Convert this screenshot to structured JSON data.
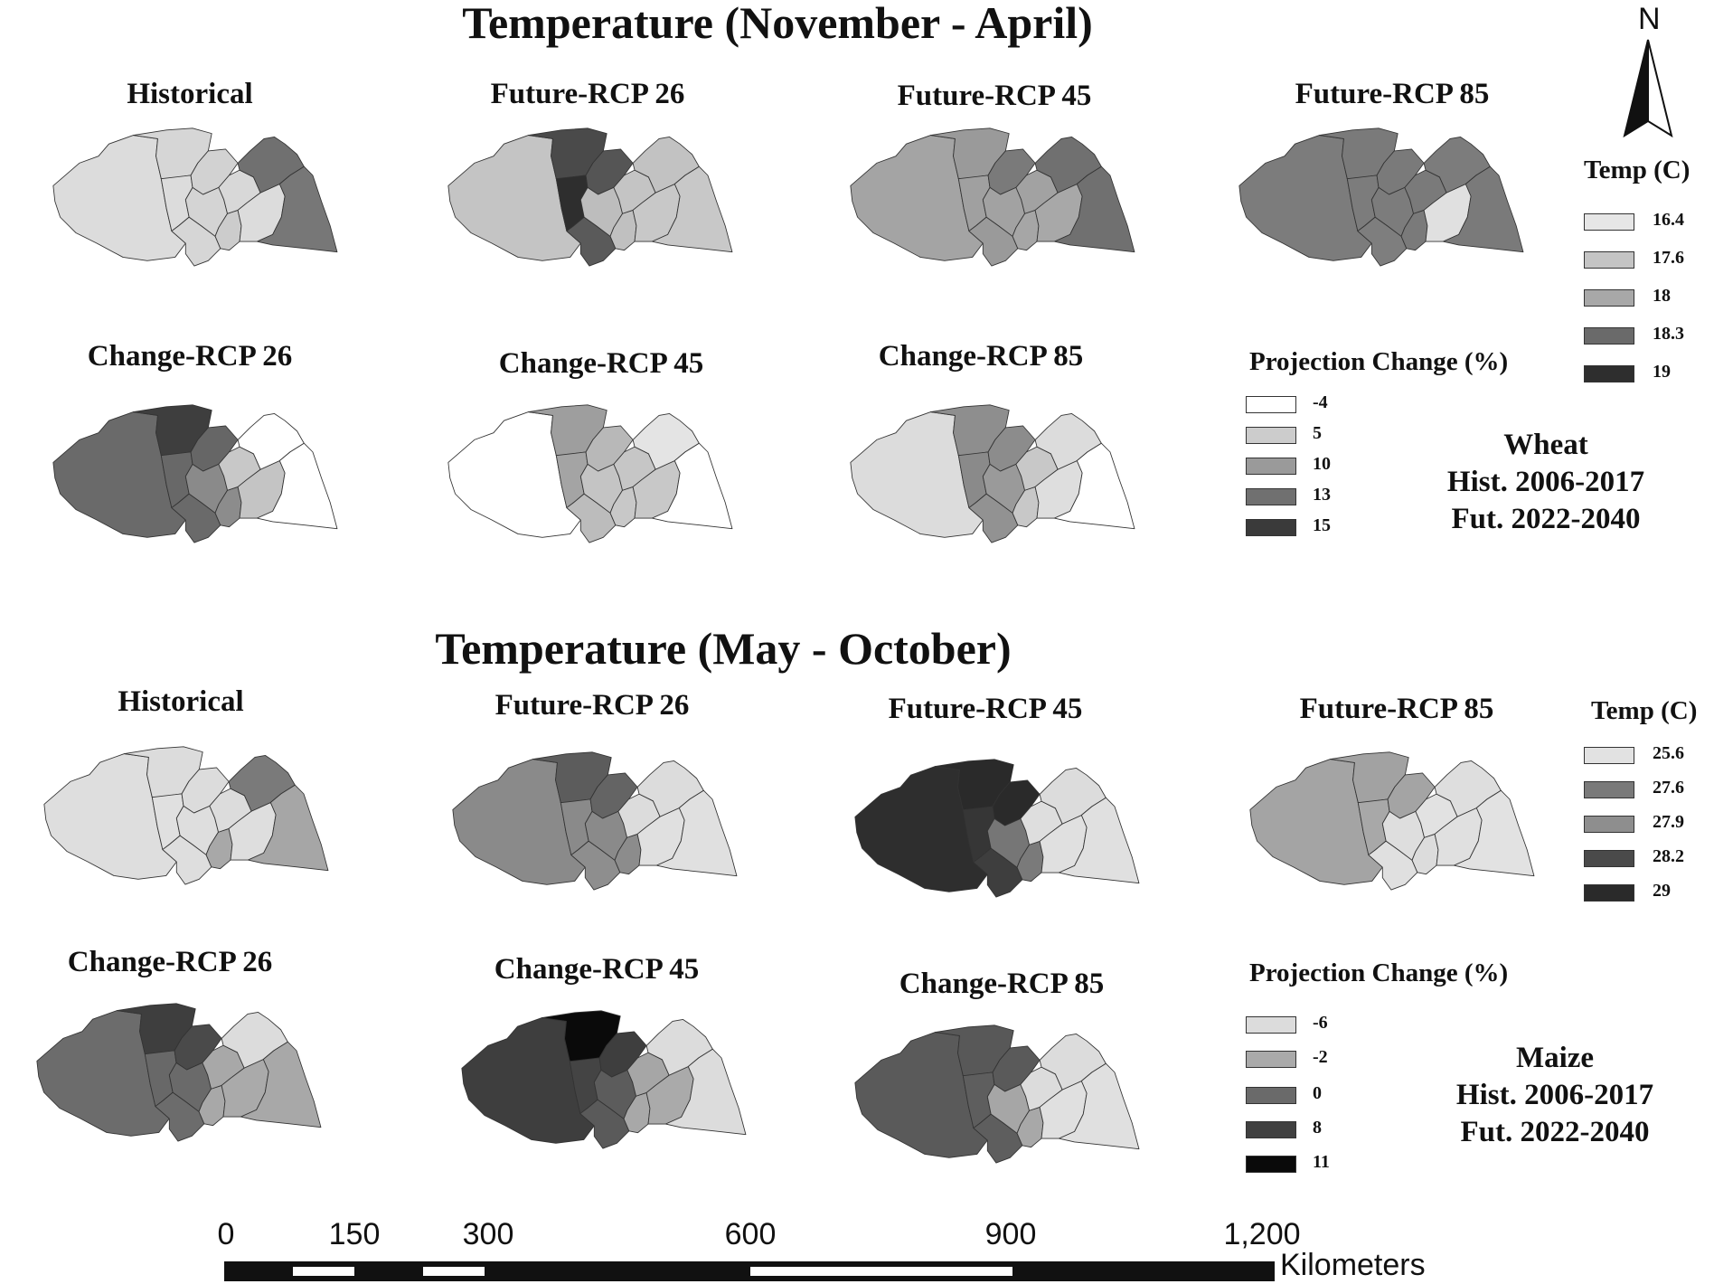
{
  "sections": [
    {
      "title": "Temperature (November - April)",
      "maps_top": [
        {
          "label": "Historical",
          "shades": [
            "#dcdcdc",
            "#d6d6d6",
            "#dcdcdc",
            "#d2d2d2",
            "#d6d6d6",
            "#d4d4d4",
            "#cccccc",
            "#d8d8d8",
            "#dcdcdc",
            "#707070",
            "#777777"
          ]
        },
        {
          "label": "Future-RCP 26",
          "shades": [
            "#c4c4c4",
            "#4a4a4a",
            "#2e2e2e",
            "#555555",
            "#5a5a5a",
            "#bdbdbd",
            "#c0c0c0",
            "#c4c4c4",
            "#c8c8c8",
            "#c2c2c2",
            "#c8c8c8"
          ]
        },
        {
          "label": "Future-RCP 45",
          "shades": [
            "#a4a4a4",
            "#9a9a9a",
            "#a0a0a0",
            "#7a7a7a",
            "#9a9a9a",
            "#a2a2a2",
            "#a6a6a6",
            "#a2a2a2",
            "#a8a8a8",
            "#707070",
            "#707070"
          ]
        },
        {
          "label": "Future-RCP 85",
          "shades": [
            "#7c7c7c",
            "#7a7a7a",
            "#7c7c7c",
            "#7a7a7a",
            "#7e7e7e",
            "#7c7c7c",
            "#7a7a7a",
            "#7a7a7a",
            "#e0e0e0",
            "#7c7c7c",
            "#7a7a7a"
          ]
        }
      ],
      "maps_bottom": [
        {
          "label": "Change-RCP 26",
          "shades": [
            "#6a6a6a",
            "#3e3e3e",
            "#686868",
            "#666666",
            "#6a6a6a",
            "#8a8a8a",
            "#8c8c8c",
            "#c8c8c8",
            "#c4c4c4",
            "#ffffff",
            "#ffffff"
          ]
        },
        {
          "label": "Change-RCP 45",
          "shades": [
            "#ffffff",
            "#9e9e9e",
            "#a4a4a4",
            "#b8b8b8",
            "#bcbcbc",
            "#c4c4c4",
            "#c8c8c8",
            "#c6c6c6",
            "#c8c8c8",
            "#e4e4e4",
            "#ffffff"
          ]
        },
        {
          "label": "Change-RCP 85",
          "shades": [
            "#dcdcdc",
            "#8e8e8e",
            "#8a8a8a",
            "#8c8c8c",
            "#929292",
            "#9a9a9a",
            "#c8c8c8",
            "#c8c8c8",
            "#dedede",
            "#dcdcdc",
            "#ffffff"
          ]
        }
      ],
      "temp_legend": {
        "title": "Temp (C)",
        "items": [
          {
            "label": "16.4",
            "color": "#e6e6e6"
          },
          {
            "label": "17.6",
            "color": "#c4c4c4"
          },
          {
            "label": "18",
            "color": "#a8a8a8"
          },
          {
            "label": "18.3",
            "color": "#6a6a6a"
          },
          {
            "label": "19",
            "color": "#2e2e2e"
          }
        ]
      },
      "change_legend": {
        "title": "Projection Change (%)",
        "items": [
          {
            "label": "-4",
            "color": "#ffffff"
          },
          {
            "label": "5",
            "color": "#cccccc"
          },
          {
            "label": "10",
            "color": "#9a9a9a"
          },
          {
            "label": "13",
            "color": "#707070"
          },
          {
            "label": "15",
            "color": "#3a3a3a"
          }
        ]
      },
      "info": {
        "crop": "Wheat",
        "hist": "Hist. 2006-2017",
        "fut": "Fut. 2022-2040"
      }
    },
    {
      "title": "Temperature (May - October)",
      "maps_top": [
        {
          "label": "Historical",
          "shades": [
            "#dedede",
            "#dcdcdc",
            "#e0e0e0",
            "#dcdcdc",
            "#dedede",
            "#dedede",
            "#a8a8a8",
            "#dcdcdc",
            "#dedede",
            "#7a7a7a",
            "#a6a6a6"
          ]
        },
        {
          "label": "Future-RCP 26",
          "shades": [
            "#8a8a8a",
            "#5c5c5c",
            "#8a8a8a",
            "#646464",
            "#8e8e8e",
            "#8a8a8a",
            "#8c8c8c",
            "#dcdcdc",
            "#e0e0e0",
            "#dcdcdc",
            "#e0e0e0"
          ]
        },
        {
          "label": "Future-RCP 45",
          "shades": [
            "#2e2e2e",
            "#2a2a2a",
            "#363636",
            "#2a2a2a",
            "#3e3e3e",
            "#767676",
            "#7a7a7a",
            "#dedede",
            "#e0e0e0",
            "#dcdcdc",
            "#e0e0e0"
          ]
        },
        {
          "label": "Future-RCP 85",
          "shades": [
            "#a4a4a4",
            "#a2a2a2",
            "#a8a8a8",
            "#a4a4a4",
            "#e0e0e0",
            "#dedede",
            "#dcdcdc",
            "#e2e2e2",
            "#e0e0e0",
            "#dedede",
            "#e2e2e2"
          ]
        }
      ],
      "maps_bottom": [
        {
          "label": "Change-RCP 26",
          "shades": [
            "#6c6c6c",
            "#3e3e3e",
            "#686868",
            "#4a4a4a",
            "#6c6c6c",
            "#6a6a6a",
            "#a8a8a8",
            "#a8a8a8",
            "#aaaaaa",
            "#dcdcdc",
            "#a8a8a8"
          ]
        },
        {
          "label": "Change-RCP 45",
          "shades": [
            "#3e3e3e",
            "#0a0a0a",
            "#444444",
            "#3e3e3e",
            "#5a5a5a",
            "#5c5c5c",
            "#a8a8a8",
            "#a6a6a6",
            "#aaaaaa",
            "#dcdcdc",
            "#dcdcdc"
          ]
        },
        {
          "label": "Change-RCP 85",
          "shades": [
            "#5a5a5a",
            "#585858",
            "#5e5e5e",
            "#5a5a5a",
            "#5e5e5e",
            "#a6a6a6",
            "#a8a8a8",
            "#dcdcdc",
            "#e0e0e0",
            "#dcdcdc",
            "#e0e0e0"
          ]
        }
      ],
      "temp_legend": {
        "title": "Temp (C)",
        "items": [
          {
            "label": "25.6",
            "color": "#e2e2e2"
          },
          {
            "label": "27.6",
            "color": "#7a7a7a"
          },
          {
            "label": "27.9",
            "color": "#8e8e8e"
          },
          {
            "label": "28.2",
            "color": "#4a4a4a"
          },
          {
            "label": "29",
            "color": "#2a2a2a"
          }
        ]
      },
      "change_legend": {
        "title": "Projection Change (%)",
        "items": [
          {
            "label": "-6",
            "color": "#dcdcdc"
          },
          {
            "label": "-2",
            "color": "#aaaaaa"
          },
          {
            "label": "0",
            "color": "#6a6a6a"
          },
          {
            "label": "8",
            "color": "#404040"
          },
          {
            "label": "11",
            "color": "#0a0a0a"
          }
        ]
      },
      "info": {
        "crop": "Maize",
        "hist": "Hist. 2006-2017",
        "fut": "Fut. 2022-2040"
      }
    }
  ],
  "north_arrow": {
    "label": "N"
  },
  "scale_bar": {
    "ticks": [
      "0",
      "150",
      "300",
      "600",
      "900",
      "1,200"
    ],
    "unit": "Kilometers"
  }
}
